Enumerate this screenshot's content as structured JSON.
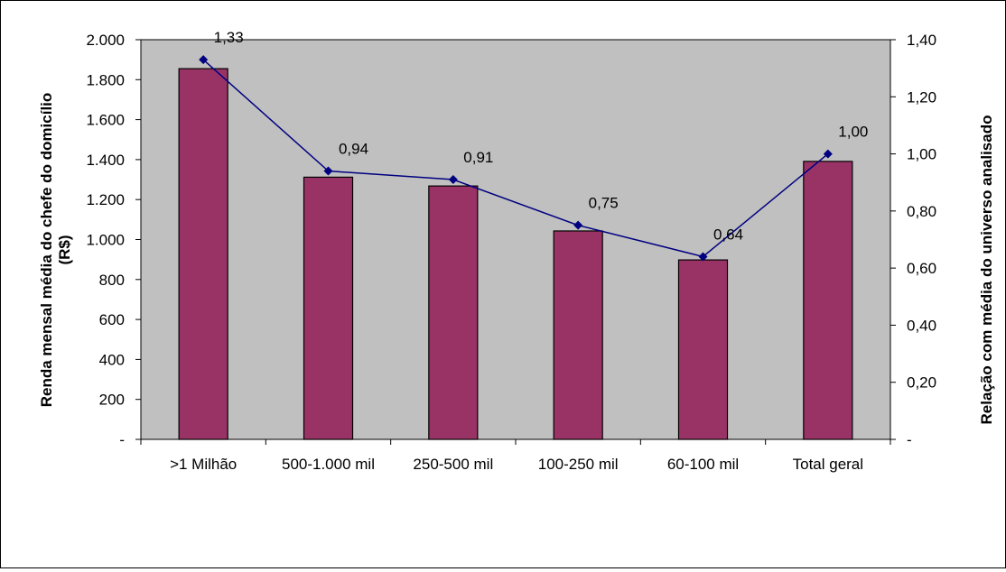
{
  "chart_data": {
    "type": "bar",
    "categories": [
      ">1 Milhão",
      "500-1.000 mil",
      "250-500 mil",
      "100-250 mil",
      "60-100 mil",
      "Total geral"
    ],
    "series": [
      {
        "values": [
          1855,
          1312,
          1268,
          1043,
          898,
          1391
        ],
        "color": "#993366",
        "type": "bar",
        "axis": "left"
      },
      {
        "values": [
          1.33,
          0.94,
          0.91,
          0.75,
          0.64,
          1.0
        ],
        "value_labels": [
          "1,33",
          "0,94",
          "0,91",
          "0,75",
          "0,64",
          "1,00"
        ],
        "color": "#000080",
        "type": "line",
        "marker": "diamond",
        "axis": "right"
      }
    ],
    "y_left": {
      "label_line1": "Renda mensal média do chefe do domicílio",
      "label_line2": "(R$)",
      "ylim": [
        0,
        2000
      ],
      "ticks": [
        0,
        200,
        400,
        600,
        800,
        1000,
        1200,
        1400,
        1600,
        1800,
        2000
      ],
      "tick_labels": [
        "-",
        "200",
        "400",
        "600",
        "800",
        "1.000",
        "1.200",
        "1.400",
        "1.600",
        "1.800",
        "2.000"
      ]
    },
    "y_right": {
      "label": "Relação com média do universo analisado",
      "ylim": [
        0,
        1.4
      ],
      "ticks": [
        0,
        0.2,
        0.4,
        0.6,
        0.8,
        1.0,
        1.2,
        1.4
      ],
      "tick_labels": [
        "-",
        "0,20",
        "0,40",
        "0,60",
        "0,80",
        "1,00",
        "1,20",
        "1,40"
      ]
    },
    "plot_background": "#c0c0c0",
    "grid": false,
    "legend": "none"
  }
}
